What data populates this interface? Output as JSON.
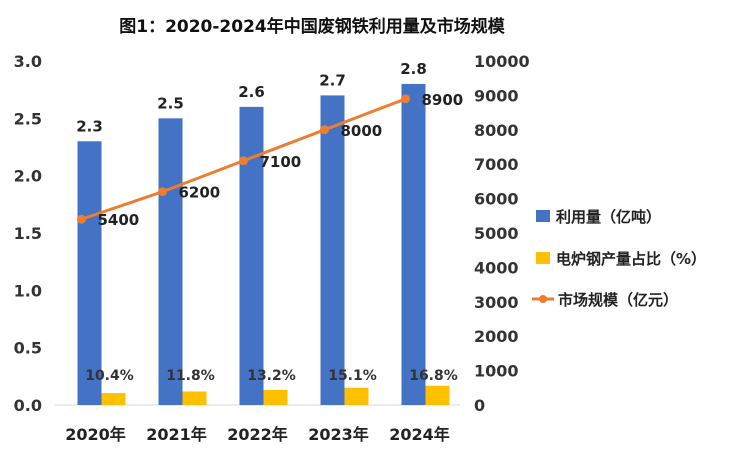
{
  "chart_data": {
    "type": "bar",
    "title": "图1：2020-2024年中国废钢铁利用量及市场规模",
    "categories": [
      "2020年",
      "2021年",
      "2022年",
      "2023年",
      "2024年"
    ],
    "series": [
      {
        "name": "利用量（亿吨）",
        "chart_type": "bar",
        "axis": "left",
        "color": "#4472C4",
        "values": [
          2.3,
          2.5,
          2.6,
          2.7,
          2.8
        ],
        "labels": [
          "2.3",
          "2.5",
          "2.6",
          "2.7",
          "2.8"
        ]
      },
      {
        "name": "电炉钢产量占比（%）",
        "chart_type": "bar",
        "axis": "left",
        "color": "#FFC000",
        "values": [
          10.4,
          11.8,
          13.2,
          15.1,
          16.8
        ],
        "labels": [
          "10.4%",
          "11.8%",
          "13.2%",
          "15.1%",
          "16.8%"
        ]
      },
      {
        "name": "市场规模（亿元）",
        "chart_type": "line",
        "axis": "right",
        "color": "#ED7D31",
        "values": [
          5400,
          6200,
          7100,
          8000,
          8900
        ],
        "labels": [
          "5400",
          "6200",
          "7100",
          "8000",
          "8900"
        ]
      }
    ],
    "y_left": {
      "range": [
        0,
        3.0
      ],
      "ticks": [
        "0.0",
        "0.5",
        "1.0",
        "1.5",
        "2.0",
        "2.5",
        "3.0"
      ]
    },
    "y_right": {
      "range": [
        0,
        10000
      ],
      "ticks": [
        "0",
        "1000",
        "2000",
        "3000",
        "4000",
        "5000",
        "6000",
        "7000",
        "8000",
        "9000",
        "10000"
      ]
    },
    "grid": false,
    "legend_position": "right"
  }
}
